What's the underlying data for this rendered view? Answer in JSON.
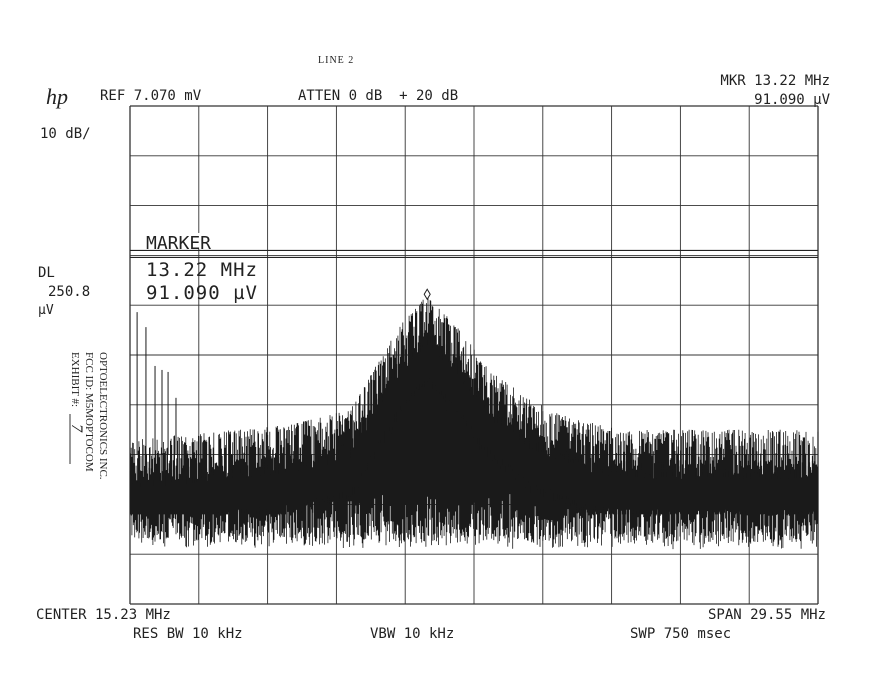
{
  "header": {
    "page_label": "LINE 2",
    "logo": "hp",
    "ref_level": "REF 7.070 mV",
    "attenuation": "ATTEN 0 dB  + 20 dB",
    "marker_freq": "MKR 13.22 MHz",
    "marker_amp": "91.090 µV",
    "scale": "10 dB/"
  },
  "display_line": {
    "label": "DL",
    "value": "250.8",
    "unit": "µV"
  },
  "marker_box": {
    "title": "MARKER",
    "freq": "13.22 MHz",
    "amp": "91.090 µV"
  },
  "footer": {
    "center": "CENTER 15.23 MHz",
    "res_bw": "RES BW 10 kHz",
    "vbw": "VBW 10 kHz",
    "span": "SPAN 29.55 MHz",
    "sweep": "SWP 750 msec"
  },
  "stamp": {
    "line1": "OPTOELECTRONICS INC.",
    "line2": "FCC ID: M5MOPTOCOM",
    "line3": "EXHIBIT #:",
    "exhibit_number": "7"
  },
  "chart_data": {
    "type": "line",
    "title": "",
    "xlabel": "",
    "ylabel": "",
    "x_unit": "MHz",
    "y_unit": "dB below reference",
    "xlim": [
      0.455,
      30.005
    ],
    "ylim_db_below_ref": [
      0,
      100
    ],
    "grid": true,
    "grid_divisions": [
      10,
      10
    ],
    "reference_level_mV": 7.07,
    "display_line_uV": 250.8,
    "display_line_db_below_ref": 29,
    "marker": {
      "freq_MHz": 13.22,
      "amp_uV": 91.09,
      "db_below_ref": 37.8
    },
    "trace_peak_envelope": {
      "freq_MHz": [
        0.455,
        7.33,
        9.9,
        10.76,
        12.05,
        13.22,
        14.63,
        15.92,
        17.64,
        19.78,
        21.5,
        30.0
      ],
      "db_below_ref": [
        67,
        64,
        61,
        54,
        44,
        38,
        45,
        53,
        59,
        63,
        65,
        65
      ]
    },
    "noise_floor_db_below_ref": 86,
    "spurs": {
      "freq_MHz": [
        0.76,
        1.14,
        1.53,
        1.83,
        2.09,
        2.43
      ],
      "db_below_ref": [
        41.4,
        44.4,
        52.2,
        53,
        53.4,
        58.6
      ]
    },
    "colors": {
      "trace": "#1a1a1a",
      "grid": "#333333",
      "paper": "#ffffff"
    }
  }
}
